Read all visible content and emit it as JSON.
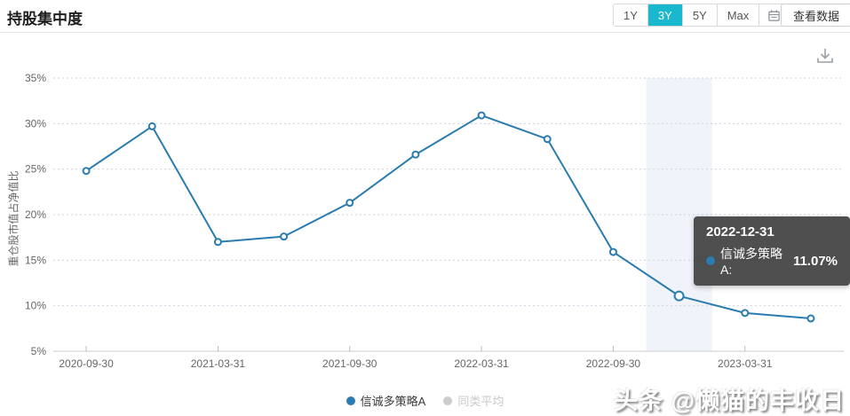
{
  "header": {
    "title": "持股集中度",
    "range_buttons": [
      "1Y",
      "3Y",
      "5Y",
      "Max"
    ],
    "active_range": "3Y",
    "view_data_label": "查看数据"
  },
  "icons": {
    "calendar": "calendar-icon",
    "download": "download-icon"
  },
  "chart_data": {
    "type": "line",
    "title": "持股集中度",
    "ylabel": "重仓股市值占净值比",
    "x": [
      "2020-09-30",
      "2020-12-31",
      "2021-03-31",
      "2021-06-30",
      "2021-09-30",
      "2021-12-31",
      "2022-03-31",
      "2022-06-30",
      "2022-09-30",
      "2022-12-31",
      "2023-03-31",
      "2023-06-30"
    ],
    "x_tick_indices": [
      0,
      2,
      4,
      6,
      8,
      10
    ],
    "x_tick_labels": [
      "2020-09-30",
      "2021-03-31",
      "2021-09-30",
      "2022-03-31",
      "2022-09-30",
      "2023-03-31"
    ],
    "series": [
      {
        "name": "信诚多策略A",
        "color": "#2b7cae",
        "values": [
          24.8,
          29.7,
          17.0,
          17.6,
          21.3,
          26.6,
          30.9,
          28.3,
          15.9,
          11.07,
          9.2,
          8.6
        ]
      },
      {
        "name": "同类平均",
        "color": "#cccccc",
        "values": [],
        "hidden": true
      }
    ],
    "ylim": [
      5,
      35
    ],
    "y_tick_values": [
      35,
      30,
      25,
      20,
      15,
      10,
      5
    ],
    "y_tick_labels": [
      "35%",
      "30%",
      "25%",
      "20%",
      "15%",
      "10%",
      "5%"
    ],
    "grid": "dotted-horizontal",
    "legend_position": "bottom",
    "highlight_index": 9
  },
  "tooltip": {
    "date": "2022-12-31",
    "series_label": "信诚多策略A:",
    "value": "11.07%"
  },
  "legend": [
    {
      "label": "信诚多策略A",
      "color": "#2b7cae",
      "active": true
    },
    {
      "label": "同类平均",
      "color": "#cccccc",
      "active": false
    }
  ],
  "watermark": "头条 @懒猫的丰收日",
  "colors": {
    "accent": "#1ab8ce",
    "line": "#2b7cae",
    "band": "#f0f3f9",
    "grid": "#ccd3e2",
    "axis": "#cccccc",
    "tick_text": "#666666"
  }
}
